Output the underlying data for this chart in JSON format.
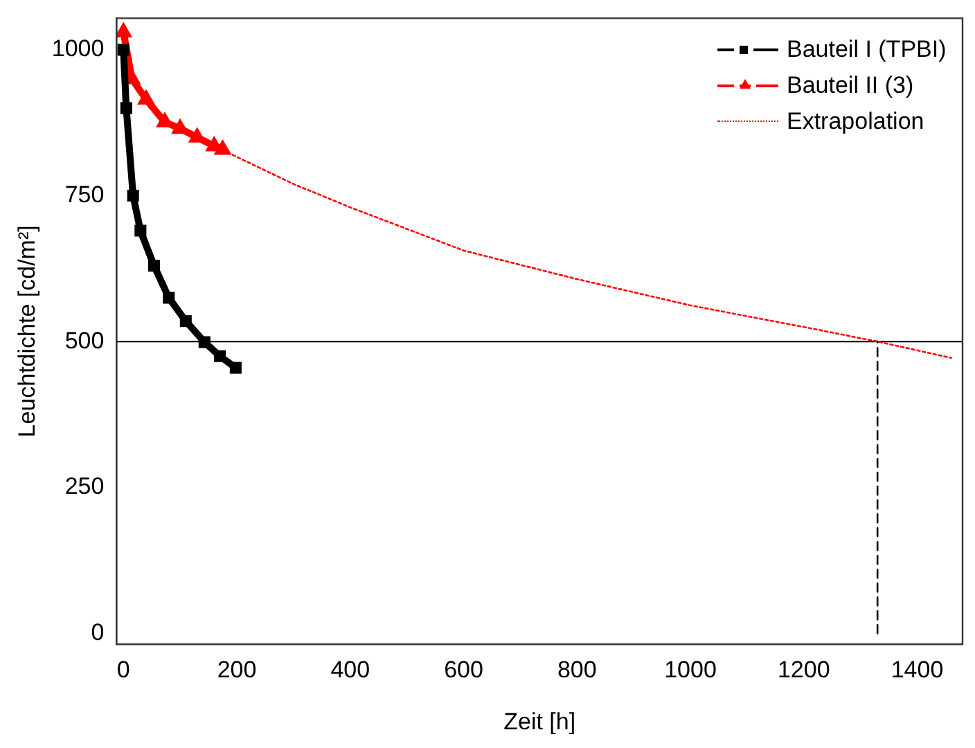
{
  "chart_data": {
    "type": "line",
    "xlabel": "Zeit [h]",
    "ylabel": "Leuchtdichte [cd/m²]",
    "xlim": [
      -12,
      1480
    ],
    "xticks": [
      0,
      200,
      400,
      600,
      800,
      1000,
      1200,
      1400
    ],
    "ylim": [
      -19,
      1054
    ],
    "yticks": [
      0,
      250,
      500,
      750,
      1000
    ],
    "grid": false,
    "legend": "top right",
    "series": [
      {
        "name": "Bauteil I (TPBI)",
        "color": "#000000",
        "marker": "square",
        "line_style": "solid",
        "x": [
          0,
          5,
          17,
          30,
          54,
          80,
          110,
          143,
          170,
          198
        ],
        "values": [
          1000,
          900,
          750,
          690,
          630,
          575,
          535,
          499,
          475,
          455
        ]
      },
      {
        "name": "Bauteil II (3)",
        "color": "#ff0000",
        "marker": "triangle",
        "line_style": "solid",
        "x": [
          0,
          15,
          40,
          73,
          100,
          130,
          160,
          175
        ],
        "values": [
          1030,
          950,
          915,
          876,
          865,
          850,
          835,
          829
        ]
      },
      {
        "name": "Extrapolation",
        "color": "#ff0000",
        "marker": "none",
        "line_style": "dotted",
        "x": [
          175,
          300,
          400,
          600,
          800,
          1000,
          1200,
          1330,
          1460
        ],
        "values": [
          828,
          770,
          730,
          656,
          607,
          562,
          525,
          500,
          472
        ]
      },
      {
        "color": "#000000",
        "marker": "none",
        "line_style": "dashed",
        "x": [
          1330,
          1330
        ],
        "values": [
          0,
          500
        ]
      }
    ],
    "ref_lines": [
      {
        "axis": "y",
        "value": 500,
        "color": "#000000",
        "line_style": "solid"
      }
    ]
  }
}
